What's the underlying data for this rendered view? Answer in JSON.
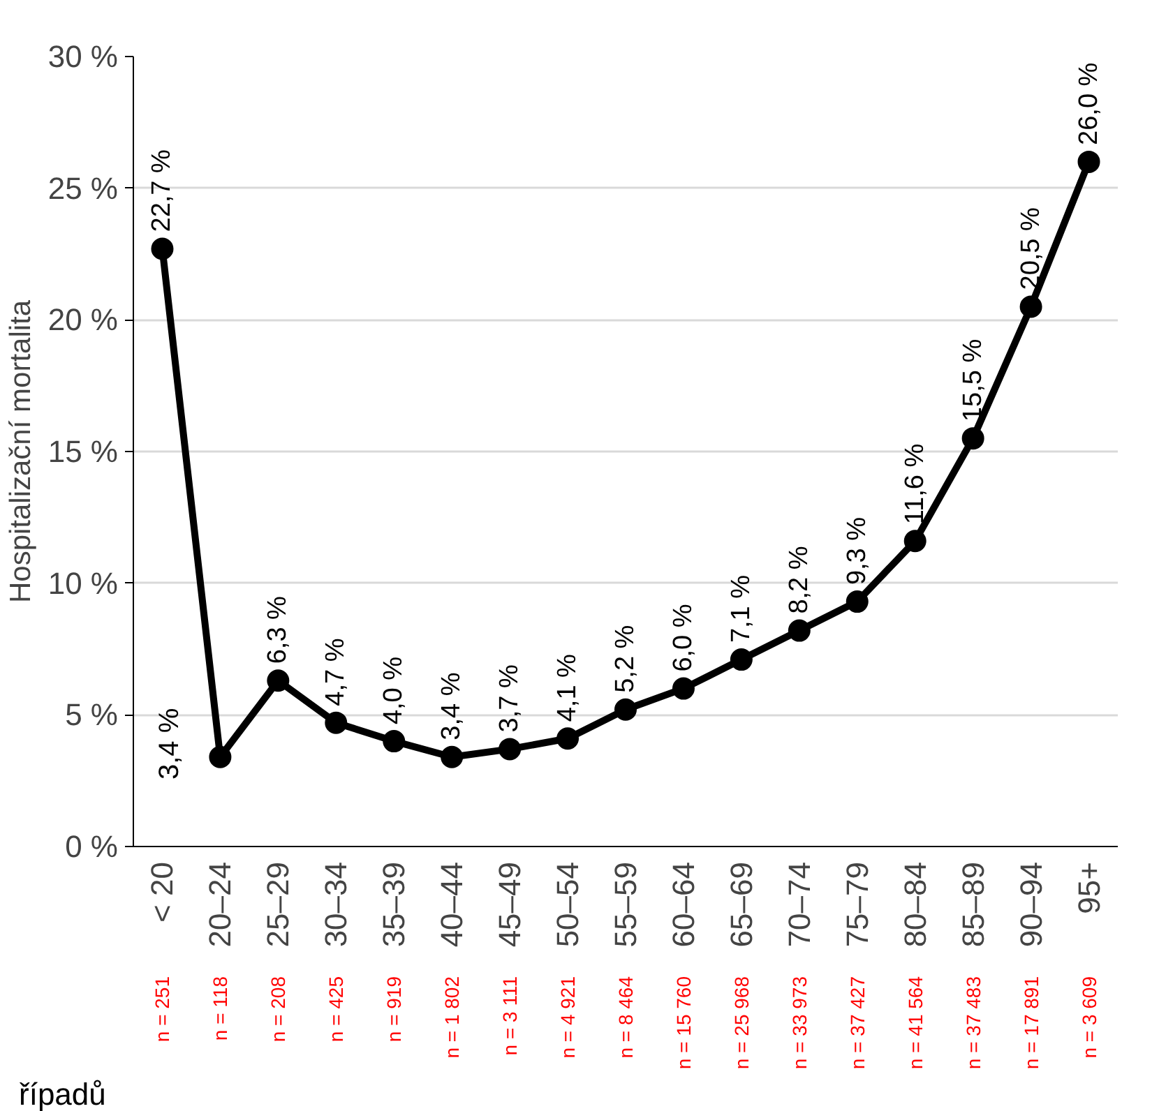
{
  "chart_data": {
    "type": "line",
    "ylabel": "Hospitalizační mortalita",
    "categories": [
      "< 20",
      "20–24",
      "25–29",
      "30–34",
      "35–39",
      "40–44",
      "45–49",
      "50–54",
      "55–59",
      "60–64",
      "65–69",
      "70–74",
      "75–79",
      "80–84",
      "85–89",
      "90–94",
      "95+"
    ],
    "series": [
      {
        "color": "#000000",
        "values": [
          22.7,
          3.4,
          6.3,
          4.7,
          4.0,
          3.4,
          3.7,
          4.1,
          5.2,
          6.0,
          7.1,
          8.2,
          9.3,
          11.6,
          15.5,
          20.5,
          26.0
        ],
        "value_labels": [
          "22,7 %",
          "3,4 %",
          "6,3 %",
          "4,7 %",
          "4,0 %",
          "3,4 %",
          "3,7 %",
          "4,1 %",
          "5,2 %",
          "6,0 %",
          "7,1 %",
          "8,2 %",
          "9,3 %",
          "11,6 %",
          "15,5 %",
          "20,5 %",
          "26,0 %"
        ]
      }
    ],
    "ylim": [
      0,
      30
    ],
    "yticks": [
      {
        "value": 0,
        "label": "0 %"
      },
      {
        "value": 5,
        "label": "5 %"
      },
      {
        "value": 10,
        "label": "10 %"
      },
      {
        "value": 15,
        "label": "15 %"
      },
      {
        "value": 20,
        "label": "20 %"
      },
      {
        "value": 25,
        "label": "25 %"
      },
      {
        "value": 30,
        "label": "30 %"
      }
    ],
    "grid": "y",
    "marker": "circle",
    "line_style": "solid",
    "annotations": [
      "n = 251",
      "n = 118",
      "n = 208",
      "n = 425",
      "n = 919",
      "n = 1 802",
      "n = 3 111",
      "n = 4 921",
      "n = 8 464",
      "n = 15 760",
      "n = 25 968",
      "n = 33 973",
      "n = 37 427",
      "n = 41 564",
      "n = 37 483",
      "n = 17 891",
      "n = 3 609",
      "řípadů"
    ]
  }
}
